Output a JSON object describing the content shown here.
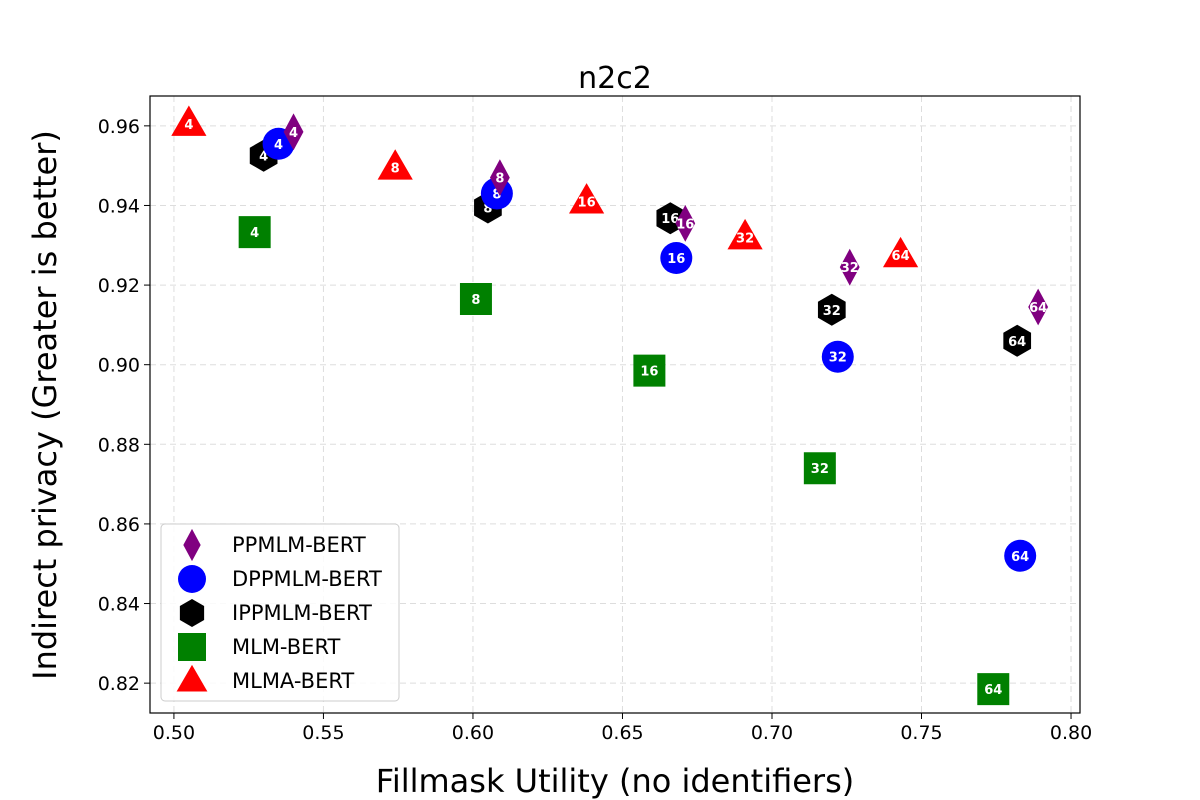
{
  "chart_data": {
    "type": "scatter",
    "title": "n2c2",
    "xlabel": "Fillmask Utility (no identifiers)",
    "ylabel": "Indirect privacy (Greater is better)",
    "xlim": [
      0.492,
      0.803
    ],
    "ylim": [
      0.8125,
      0.9675
    ],
    "xticks": [
      "0.50",
      "0.55",
      "0.60",
      "0.65",
      "0.70",
      "0.75",
      "0.80"
    ],
    "yticks": [
      "0.82",
      "0.84",
      "0.86",
      "0.88",
      "0.90",
      "0.92",
      "0.94",
      "0.96"
    ],
    "grid": true,
    "legend_position": "lower-left",
    "series": [
      {
        "name": "PPMLM-BERT",
        "marker": "diamond",
        "color": "#800080",
        "points": [
          {
            "x": 0.54,
            "y": 0.9585,
            "label": "4"
          },
          {
            "x": 0.609,
            "y": 0.947,
            "label": "8"
          },
          {
            "x": 0.671,
            "y": 0.9355,
            "label": "16"
          },
          {
            "x": 0.726,
            "y": 0.9245,
            "label": "32"
          },
          {
            "x": 0.789,
            "y": 0.9145,
            "label": "64"
          }
        ]
      },
      {
        "name": "DPPMLM-BERT",
        "marker": "circle",
        "color": "#0000ff",
        "points": [
          {
            "x": 0.535,
            "y": 0.9555,
            "label": "4"
          },
          {
            "x": 0.608,
            "y": 0.943,
            "label": "8"
          },
          {
            "x": 0.668,
            "y": 0.9268,
            "label": "16"
          },
          {
            "x": 0.722,
            "y": 0.902,
            "label": "32"
          },
          {
            "x": 0.783,
            "y": 0.852,
            "label": "64"
          }
        ]
      },
      {
        "name": "IPPMLM-BERT",
        "marker": "hexagon",
        "color": "#000000",
        "points": [
          {
            "x": 0.53,
            "y": 0.9525,
            "label": "4"
          },
          {
            "x": 0.605,
            "y": 0.9395,
            "label": "8"
          },
          {
            "x": 0.666,
            "y": 0.9368,
            "label": "16"
          },
          {
            "x": 0.72,
            "y": 0.9138,
            "label": "32"
          },
          {
            "x": 0.782,
            "y": 0.906,
            "label": "64"
          }
        ]
      },
      {
        "name": "MLM-BERT",
        "marker": "square",
        "color": "#008000",
        "points": [
          {
            "x": 0.527,
            "y": 0.9333,
            "label": "4"
          },
          {
            "x": 0.601,
            "y": 0.9165,
            "label": "8"
          },
          {
            "x": 0.659,
            "y": 0.8985,
            "label": "16"
          },
          {
            "x": 0.716,
            "y": 0.874,
            "label": "32"
          },
          {
            "x": 0.774,
            "y": 0.8185,
            "label": "64"
          }
        ]
      },
      {
        "name": "MLMA-BERT",
        "marker": "triangle",
        "color": "#ff0000",
        "points": [
          {
            "x": 0.505,
            "y": 0.9605,
            "label": "4"
          },
          {
            "x": 0.574,
            "y": 0.9495,
            "label": "8"
          },
          {
            "x": 0.638,
            "y": 0.941,
            "label": "16"
          },
          {
            "x": 0.691,
            "y": 0.932,
            "label": "32"
          },
          {
            "x": 0.743,
            "y": 0.9275,
            "label": "64"
          }
        ]
      }
    ],
    "legend": [
      "PPMLM-BERT",
      "DPPMLM-BERT",
      "IPPMLM-BERT",
      "MLM-BERT",
      "MLMA-BERT"
    ]
  }
}
